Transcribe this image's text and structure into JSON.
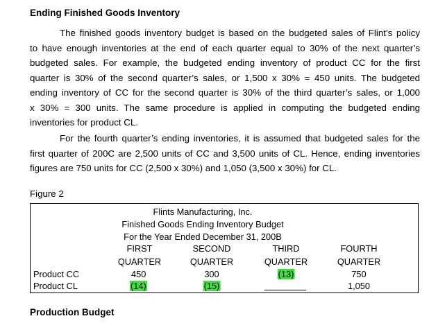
{
  "heading_inventory": "Ending Finished Goods Inventory",
  "para1": [
    "The finished goods inventory budget is based on the budgeted sales of Flint’s policy",
    "to have enough inventories at the end of each quarter equal to 30% of the next quarter’s",
    "budgeted sales. For example, the budgeted ending inventory of product CC for the first",
    "quarter is 30% of the second quarter’s sales, or 1,500 x 30% = 450 units. The budgeted",
    "ending inventory of CC for the second quarter is 30% of the third quarter’s sales, or 1,000",
    "x 30% = 300 units. The same procedure is applied in computing the budgeted ending",
    "inventories for product CL."
  ],
  "para2": [
    "For the fourth quarter’s ending inventories, it is assumed that budgeted sales for the",
    "first quarter of 200C are 2,500 units of CC and 3,500 units of CL. Hence, ending inventories",
    "figures are 750 units for CC (2,500 x 30%) and 1,050 (3,500 x 30%) for CL."
  ],
  "figure_label": "Figure 2",
  "table": {
    "company": "Flints Manufacturing, Inc.",
    "title": "Finished Goods Ending Inventory Budget",
    "period": "For the Year Ended December 31, 200B",
    "col_top": [
      "FIRST",
      "SECOND",
      "THIRD",
      "FOURTH"
    ],
    "col_bottom": [
      "QUARTER",
      "QUARTER",
      "QUARTER",
      "QUARTER"
    ],
    "rows": [
      {
        "label": "Product CC",
        "values": [
          "450",
          "300",
          "(13)",
          "750"
        ]
      },
      {
        "label": "Product CL",
        "values": [
          "(14)",
          "(15)",
          "",
          "1,050"
        ]
      }
    ],
    "highlight_color": "#3ee13e"
  },
  "heading_production": "Production Budget"
}
